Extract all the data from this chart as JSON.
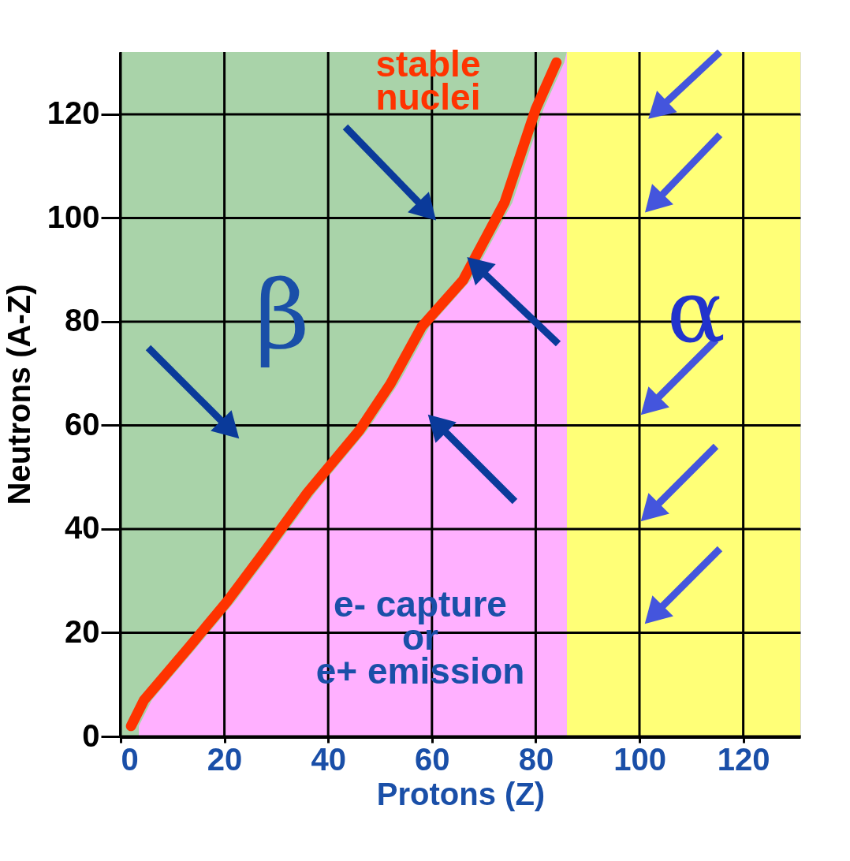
{
  "chart_data": {
    "type": "area",
    "xlabel": "Protons  (Z)",
    "ylabel": "Neutrons  (A-Z)",
    "xlim": [
      0,
      131
    ],
    "ylim": [
      0,
      132
    ],
    "xticks": [
      0,
      20,
      40,
      60,
      80,
      100,
      120
    ],
    "yticks": [
      0,
      20,
      40,
      60,
      80,
      100,
      120
    ],
    "grid": true,
    "bands": [
      {
        "axis": "x",
        "from": 0,
        "to": 86,
        "color": "#a9d3a9"
      },
      {
        "axis": "x",
        "from": 86,
        "to": 131,
        "color": "#ffff77"
      }
    ],
    "series": [
      {
        "color": "#ffb0ff",
        "x": [
          3.5,
          6,
          14.5,
          22,
          29.5,
          37.5,
          47.5,
          53.5,
          59.5,
          67.5,
          75.5,
          81.5,
          85.5,
          86
        ],
        "values": [
          2,
          7,
          17,
          26,
          36,
          47,
          59,
          68,
          79,
          88,
          103,
          121,
          130,
          132
        ]
      },
      {
        "type": "line",
        "color": "#ff3300",
        "x": [
          2,
          4.5,
          13,
          20.5,
          28,
          36,
          46,
          52,
          58,
          66,
          74,
          80,
          84
        ],
        "values": [
          2,
          7,
          17,
          26,
          36,
          47,
          59,
          68,
          79,
          88,
          103,
          121,
          130
        ]
      }
    ],
    "annotations": [
      "stable\nnuclei",
      "β",
      "α",
      "e- capture\nor\ne+ emission"
    ]
  }
}
